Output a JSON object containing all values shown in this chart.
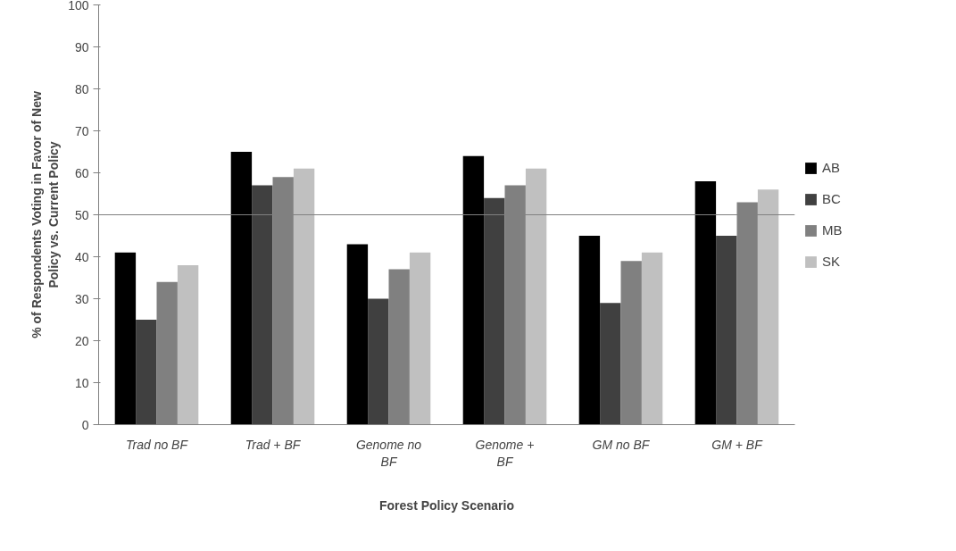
{
  "chart_data": {
    "type": "bar",
    "xlabel": "Forest Policy Scenario",
    "ylabel": "% of Respondents Voting in Favor of New Policy vs. Current Policy",
    "categories": [
      "Trad no BF",
      "Trad + BF",
      "Genome no BF",
      "Genome + BF",
      "GM no BF",
      "GM + BF"
    ],
    "series": [
      {
        "name": "AB",
        "color": "#000000",
        "values": [
          41,
          65,
          43,
          64,
          45,
          58
        ]
      },
      {
        "name": "BC",
        "color": "#404040",
        "values": [
          25,
          57,
          30,
          54,
          29,
          45
        ]
      },
      {
        "name": "MB",
        "color": "#808080",
        "values": [
          34,
          59,
          37,
          57,
          39,
          53
        ]
      },
      {
        "name": "SK",
        "color": "#c0c0c0",
        "values": [
          38,
          61,
          41,
          61,
          41,
          56
        ]
      }
    ],
    "ylim": [
      0,
      100
    ],
    "yticks": [
      0,
      10,
      20,
      30,
      40,
      50,
      60,
      70,
      80,
      90,
      100
    ],
    "ref_lines": [
      {
        "axis": "y",
        "value": 50,
        "color": "#808080"
      }
    ],
    "grid": false,
    "legend": "right"
  }
}
